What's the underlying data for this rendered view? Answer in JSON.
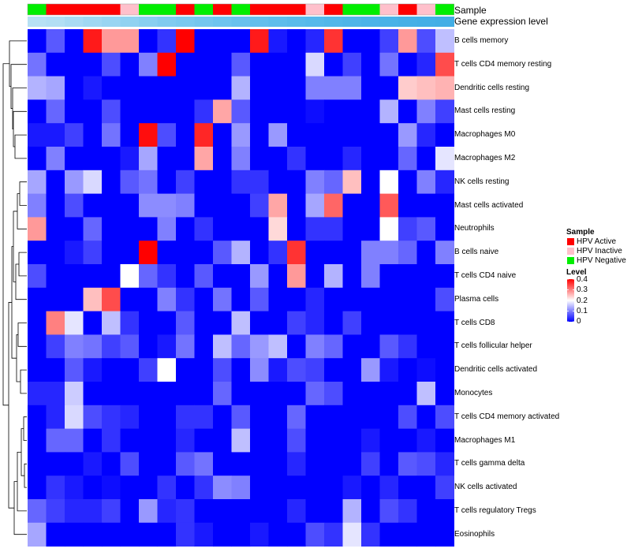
{
  "chart_data": {
    "type": "heatmap",
    "annotation_tracks": [
      "Sample",
      "Gene expression level"
    ],
    "sample_groups": [
      "P",
      "A",
      "A",
      "A",
      "A",
      "I",
      "P",
      "P",
      "A",
      "P",
      "A",
      "P",
      "A",
      "A",
      "A",
      "I",
      "A",
      "P",
      "P",
      "I",
      "A",
      "I",
      "P"
    ],
    "expression_level_colors": [
      "#b7e1f4",
      "#b2dff4",
      "#a9dbf3",
      "#a0d8f2",
      "#98d5f2",
      "#90d2f1",
      "#88cff0",
      "#80cbef",
      "#7ac9ef",
      "#74c6ee",
      "#6ec4ee",
      "#68c1ed",
      "#63bfec",
      "#5ebdeb",
      "#5abbea",
      "#56b9ea",
      "#52b7e9",
      "#4fb5e8",
      "#4cb3e8",
      "#49b2e7",
      "#46b0e6",
      "#44afe6",
      "#42aee5"
    ],
    "rows": [
      "B cells memory",
      "T cells CD4 memory resting",
      "Dendritic cells resting",
      "Mast cells resting",
      "Macrophages M0",
      "Macrophages M2",
      "NK cells resting",
      "Mast cells activated",
      "Neutrophils",
      "B cells naive",
      "T cells CD4 naive",
      "Plasma cells",
      "T cells CD8",
      "T cells follicular helper",
      "Dendritic cells activated",
      "Monocytes",
      "T cells CD4 memory activated",
      "Macrophages M1",
      "T cells gamma delta",
      "NK cells activated",
      "T cells regulatory  Tregs",
      "Eosinophils"
    ],
    "values": [
      [
        0.0,
        0.07,
        0.0,
        0.38,
        0.28,
        0.28,
        0.0,
        0.04,
        0.4,
        0.0,
        0.0,
        0.0,
        0.38,
        0.02,
        0.0,
        0.03,
        0.36,
        0.0,
        0.0,
        0.05,
        0.28,
        0.06,
        0.15
      ],
      [
        0.09,
        0.0,
        0.0,
        0.0,
        0.06,
        0.0,
        0.1,
        0.4,
        0.0,
        0.0,
        0.0,
        0.07,
        0.0,
        0.0,
        0.0,
        0.17,
        0.0,
        0.05,
        0.0,
        0.09,
        0.0,
        0.03,
        0.34
      ],
      [
        0.14,
        0.13,
        0.0,
        0.02,
        0.0,
        0.0,
        0.0,
        0.0,
        0.0,
        0.0,
        0.0,
        0.14,
        0.0,
        0.0,
        0.0,
        0.1,
        0.1,
        0.1,
        0.0,
        0.0,
        0.24,
        0.25,
        0.26
      ],
      [
        0.0,
        0.08,
        0.0,
        0.0,
        0.06,
        0.0,
        0.0,
        0.0,
        0.0,
        0.04,
        0.27,
        0.07,
        0.0,
        0.0,
        0.0,
        0.01,
        0.0,
        0.0,
        0.0,
        0.14,
        0.0,
        0.1,
        0.05
      ],
      [
        0.02,
        0.02,
        0.05,
        0.0,
        0.09,
        0.0,
        0.39,
        0.06,
        0.0,
        0.37,
        0.0,
        0.12,
        0.0,
        0.12,
        0.0,
        0.0,
        0.0,
        0.0,
        0.0,
        0.0,
        0.12,
        0.03,
        0.0
      ],
      [
        0.0,
        0.1,
        0.0,
        0.0,
        0.0,
        0.02,
        0.13,
        0.0,
        0.0,
        0.27,
        0.0,
        0.1,
        0.0,
        0.0,
        0.04,
        0.0,
        0.0,
        0.03,
        0.0,
        0.0,
        0.08,
        0.0,
        0.18
      ],
      [
        0.13,
        0.0,
        0.12,
        0.17,
        0.0,
        0.07,
        0.09,
        0.0,
        0.05,
        0.0,
        0.0,
        0.04,
        0.04,
        0.0,
        0.0,
        0.1,
        0.08,
        0.25,
        0.0,
        0.2,
        0.0,
        0.1,
        0.03
      ],
      [
        0.1,
        0.0,
        0.06,
        0.0,
        0.0,
        0.0,
        0.11,
        0.11,
        0.1,
        0.0,
        0.0,
        0.0,
        0.05,
        0.27,
        0.0,
        0.13,
        0.32,
        0.0,
        0.0,
        0.33,
        0.0,
        0.0,
        0.0
      ],
      [
        0.28,
        0.0,
        0.0,
        0.08,
        0.0,
        0.0,
        0.0,
        0.1,
        0.0,
        0.04,
        0.0,
        0.0,
        0.0,
        0.23,
        0.0,
        0.04,
        0.04,
        0.0,
        0.0,
        0.2,
        0.05,
        0.07,
        0.0
      ],
      [
        0.0,
        0.0,
        0.02,
        0.05,
        0.0,
        0.0,
        0.4,
        0.0,
        0.0,
        0.0,
        0.07,
        0.14,
        0.0,
        0.04,
        0.36,
        0.0,
        0.0,
        0.0,
        0.1,
        0.1,
        0.08,
        0.0,
        0.1
      ],
      [
        0.06,
        0.0,
        0.0,
        0.0,
        0.0,
        0.2,
        0.08,
        0.04,
        0.0,
        0.07,
        0.0,
        0.0,
        0.12,
        0.0,
        0.28,
        0.0,
        0.14,
        0.0,
        0.1,
        0.0,
        0.0,
        0.0,
        0.0
      ],
      [
        0.0,
        0.0,
        0.0,
        0.25,
        0.34,
        0.0,
        0.0,
        0.1,
        0.04,
        0.0,
        0.09,
        0.0,
        0.07,
        0.0,
        0.0,
        0.03,
        0.0,
        0.0,
        0.0,
        0.0,
        0.0,
        0.0,
        0.06
      ],
      [
        0.0,
        0.3,
        0.18,
        0.0,
        0.15,
        0.04,
        0.0,
        0.0,
        0.07,
        0.0,
        0.0,
        0.15,
        0.0,
        0.0,
        0.05,
        0.03,
        0.0,
        0.05,
        0.0,
        0.0,
        0.0,
        0.0,
        0.0
      ],
      [
        0.0,
        0.05,
        0.1,
        0.09,
        0.05,
        0.07,
        0.0,
        0.02,
        0.09,
        0.0,
        0.15,
        0.08,
        0.12,
        0.15,
        0.0,
        0.1,
        0.08,
        0.0,
        0.0,
        0.07,
        0.04,
        0.0,
        0.0
      ],
      [
        0.0,
        0.0,
        0.07,
        0.02,
        0.0,
        0.0,
        0.05,
        0.2,
        0.0,
        0.0,
        0.06,
        0.0,
        0.11,
        0.02,
        0.06,
        0.05,
        0.0,
        0.0,
        0.12,
        0.02,
        0.0,
        0.01,
        0.0
      ],
      [
        0.03,
        0.03,
        0.16,
        0.0,
        0.0,
        0.0,
        0.0,
        0.0,
        0.0,
        0.0,
        0.08,
        0.0,
        0.0,
        0.0,
        0.0,
        0.08,
        0.06,
        0.0,
        0.0,
        0.0,
        0.0,
        0.15,
        0.0
      ],
      [
        0.0,
        0.03,
        0.17,
        0.06,
        0.04,
        0.03,
        0.0,
        0.0,
        0.04,
        0.04,
        0.0,
        0.07,
        0.0,
        0.0,
        0.08,
        0.0,
        0.0,
        0.0,
        0.0,
        0.0,
        0.06,
        0.0,
        0.06
      ],
      [
        0.0,
        0.08,
        0.08,
        0.0,
        0.04,
        0.0,
        0.0,
        0.0,
        0.03,
        0.0,
        0.0,
        0.15,
        0.0,
        0.0,
        0.06,
        0.0,
        0.0,
        0.0,
        0.02,
        0.0,
        0.0,
        0.02,
        0.0
      ],
      [
        0.0,
        0.0,
        0.0,
        0.02,
        0.0,
        0.06,
        0.0,
        0.0,
        0.07,
        0.09,
        0.0,
        0.0,
        0.0,
        0.0,
        0.03,
        0.0,
        0.0,
        0.0,
        0.05,
        0.0,
        0.07,
        0.06,
        0.03
      ],
      [
        0.0,
        0.04,
        0.02,
        0.0,
        0.01,
        0.0,
        0.0,
        0.04,
        0.0,
        0.04,
        0.11,
        0.1,
        0.0,
        0.0,
        0.0,
        0.0,
        0.0,
        0.02,
        0.0,
        0.03,
        0.0,
        0.0,
        0.05
      ],
      [
        0.08,
        0.05,
        0.03,
        0.03,
        0.05,
        0.0,
        0.12,
        0.03,
        0.04,
        0.0,
        0.0,
        0.0,
        0.0,
        0.0,
        0.03,
        0.0,
        0.0,
        0.14,
        0.0,
        0.06,
        0.04,
        0.0,
        0.0
      ],
      [
        0.13,
        0.0,
        0.0,
        0.0,
        0.0,
        0.0,
        0.0,
        0.0,
        0.04,
        0.02,
        0.0,
        0.0,
        0.02,
        0.0,
        0.0,
        0.06,
        0.04,
        0.18,
        0.04,
        0.0,
        0.0,
        0.0,
        0.0
      ]
    ],
    "color_scale": {
      "min": 0,
      "mid": 0.2,
      "max": 0.4,
      "low": "#0000ff",
      "mid_color": "#ffffff",
      "high": "#ff0000"
    },
    "legend": {
      "sample_title": "Sample",
      "sample_entries": [
        {
          "key": "A",
          "label": "HPV Active",
          "color": "#ff0000"
        },
        {
          "key": "I",
          "label": "HPV Inactive",
          "color": "#ffc0cb"
        },
        {
          "key": "P",
          "label": "HPV Negative",
          "color": "#00ee00"
        }
      ],
      "level_title": "Level",
      "level_ticks": [
        "0.4",
        "0.3",
        "0.2",
        "0.1",
        "0"
      ],
      "level_tick_values": [
        0.4,
        0.3,
        0.2,
        0.1,
        0
      ]
    }
  }
}
